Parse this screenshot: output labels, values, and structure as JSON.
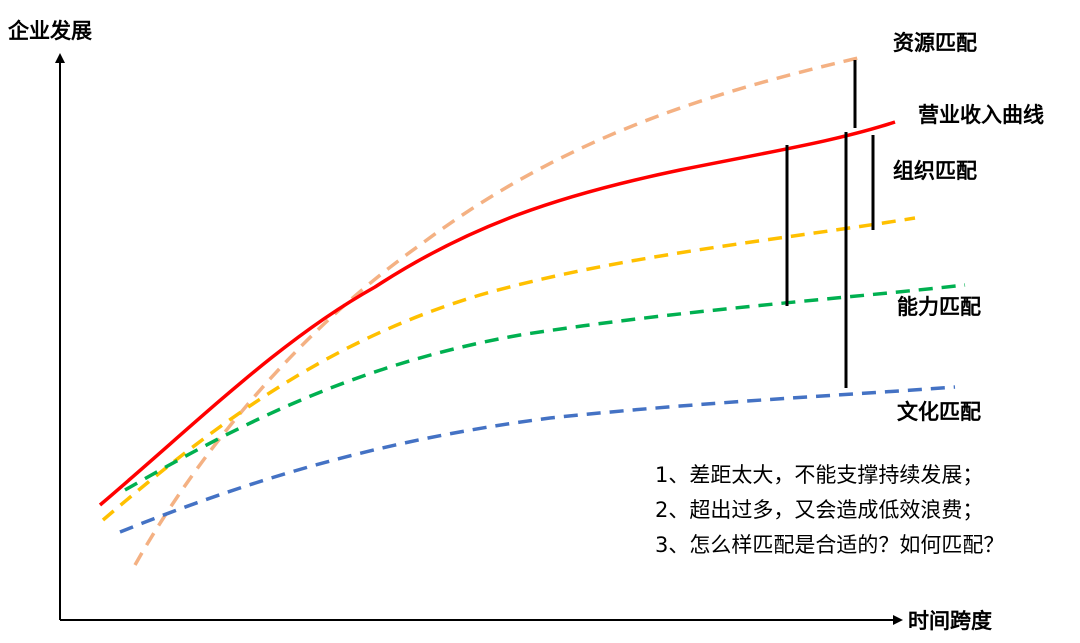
{
  "axes": {
    "y_label": "企业发展",
    "x_label": "时间跨度"
  },
  "curves": {
    "resource": "资源匹配",
    "revenue": "营业收入曲线",
    "organization": "组织匹配",
    "capability": "能力匹配",
    "culture": "文化匹配"
  },
  "notes": [
    "1、差距太大，不能支撑持续发展；",
    "2、超出过多，又会造成低效浪费；",
    "3、怎么样匹配是合适的？如何匹配？"
  ]
}
